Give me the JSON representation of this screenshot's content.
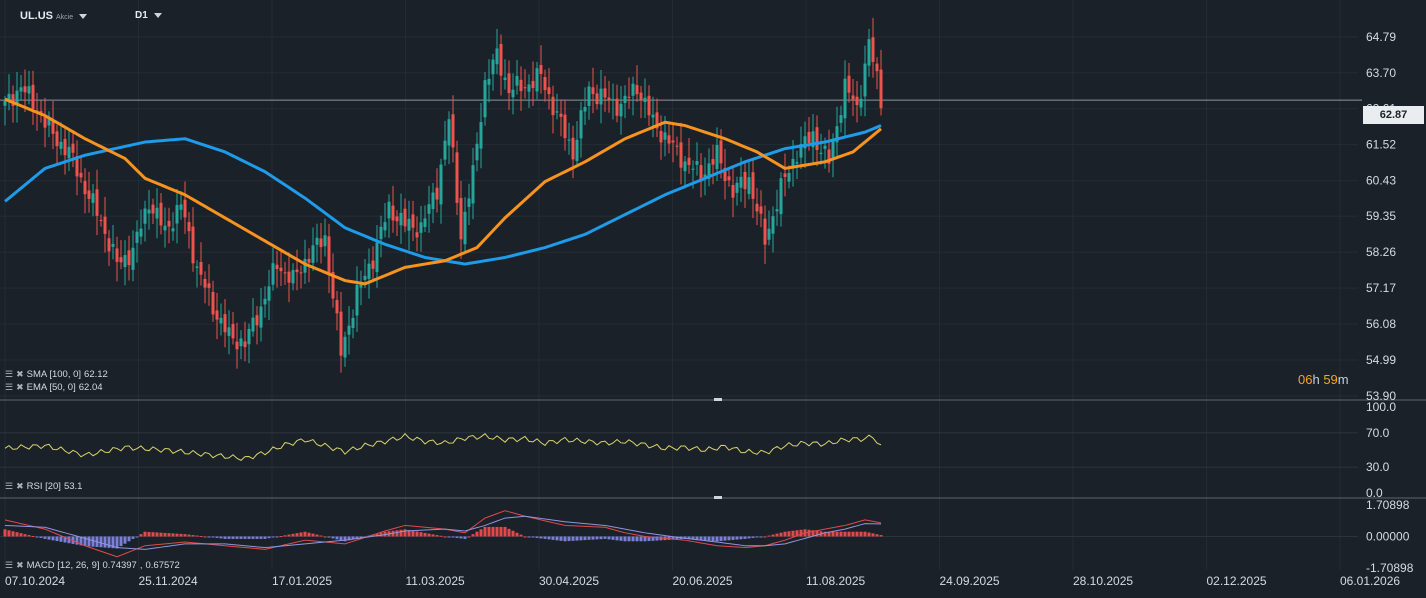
{
  "header": {
    "symbol": "UL.US",
    "type": "Akcie",
    "interval": "D1"
  },
  "indicators": {
    "sma": {
      "label": "SMA [100, 0]",
      "value": "62.12"
    },
    "ema": {
      "label": "EMA [50, 0]",
      "value": "62.04"
    },
    "rsi": {
      "label": "RSI [20]",
      "value": "53.1"
    },
    "macd": {
      "label": "MACD [12, 26, 9]",
      "value1": "0.74397",
      "value2": "0.67572"
    }
  },
  "current_price": "62.87",
  "timer": {
    "hours": "06",
    "h": "h",
    "minutes": "59",
    "m": "m"
  },
  "colors": {
    "up": "#26a69a",
    "down": "#ef5350",
    "sma": "#1e9be9",
    "ema": "#f7931e",
    "rsi": "#d9d36a",
    "bg": "#1a2129"
  },
  "chart_data": {
    "type": "candlestick",
    "price_axis": {
      "ticks": [
        "64.79",
        "63.70",
        "62.61",
        "61.52",
        "60.43",
        "59.35",
        "58.26",
        "57.17",
        "56.08",
        "54.99",
        "53.90"
      ],
      "range": [
        53.9,
        65.3
      ]
    },
    "rsi_axis": {
      "ticks": [
        "100.0",
        "70.0",
        "30.0",
        "0.0"
      ],
      "range": [
        0,
        100
      ]
    },
    "macd_axis": {
      "ticks": [
        "1.70898",
        "0.00000",
        "-1.70898"
      ],
      "range": [
        -1.70898,
        1.70898
      ]
    },
    "x_ticks": [
      "07.10.2024",
      "25.11.2024",
      "17.01.2025",
      "11.03.2025",
      "30.04.2025",
      "20.06.2025",
      "11.08.2025",
      "24.09.2025",
      "28.10.2025",
      "02.12.2025",
      "06.01.2026"
    ],
    "close_anchors": [
      [
        0,
        62.7
      ],
      [
        4,
        63.3
      ],
      [
        8,
        62.6
      ],
      [
        12,
        61.8
      ],
      [
        16,
        61.3
      ],
      [
        20,
        60.2
      ],
      [
        24,
        59.2
      ],
      [
        28,
        57.9
      ],
      [
        32,
        58.3
      ],
      [
        36,
        59.8
      ],
      [
        40,
        58.9
      ],
      [
        44,
        59.7
      ],
      [
        48,
        57.8
      ],
      [
        52,
        56.6
      ],
      [
        56,
        55.7
      ],
      [
        60,
        55.5
      ],
      [
        64,
        56.6
      ],
      [
        68,
        57.9
      ],
      [
        72,
        57.4
      ],
      [
        76,
        58.2
      ],
      [
        80,
        58.7
      ],
      [
        84,
        55.2
      ],
      [
        88,
        57.0
      ],
      [
        92,
        58.1
      ],
      [
        96,
        59.6
      ],
      [
        100,
        59.1
      ],
      [
        104,
        59.0
      ],
      [
        108,
        60.2
      ],
      [
        111,
        62.3
      ],
      [
        114,
        58.8
      ],
      [
        117,
        60.6
      ],
      [
        120,
        63.4
      ],
      [
        123,
        64.2
      ],
      [
        126,
        63.2
      ],
      [
        130,
        63.3
      ],
      [
        134,
        63.6
      ],
      [
        138,
        62.4
      ],
      [
        142,
        61.3
      ],
      [
        146,
        63.2
      ],
      [
        150,
        62.9
      ],
      [
        154,
        62.7
      ],
      [
        158,
        63.3
      ],
      [
        162,
        62.2
      ],
      [
        166,
        61.6
      ],
      [
        170,
        61.0
      ],
      [
        174,
        60.6
      ],
      [
        178,
        61.2
      ],
      [
        182,
        60.1
      ],
      [
        186,
        60.5
      ],
      [
        190,
        58.6
      ],
      [
        194,
        60.2
      ],
      [
        198,
        61.3
      ],
      [
        202,
        61.8
      ],
      [
        206,
        61.0
      ],
      [
        210,
        63.3
      ],
      [
        213,
        62.6
      ],
      [
        216,
        64.6
      ],
      [
        218,
        63.5
      ],
      [
        219,
        62.87
      ]
    ],
    "sma_anchors": [
      [
        0,
        59.8
      ],
      [
        10,
        60.8
      ],
      [
        20,
        61.2
      ],
      [
        35,
        61.6
      ],
      [
        45,
        61.7
      ],
      [
        55,
        61.3
      ],
      [
        65,
        60.7
      ],
      [
        75,
        59.9
      ],
      [
        85,
        59.0
      ],
      [
        95,
        58.5
      ],
      [
        105,
        58.1
      ],
      [
        115,
        57.9
      ],
      [
        125,
        58.1
      ],
      [
        135,
        58.4
      ],
      [
        145,
        58.8
      ],
      [
        155,
        59.4
      ],
      [
        165,
        60.0
      ],
      [
        175,
        60.5
      ],
      [
        185,
        61.0
      ],
      [
        195,
        61.4
      ],
      [
        205,
        61.6
      ],
      [
        215,
        61.9
      ],
      [
        219,
        62.1
      ]
    ],
    "ema_anchors": [
      [
        0,
        62.9
      ],
      [
        10,
        62.4
      ],
      [
        20,
        61.7
      ],
      [
        30,
        61.1
      ],
      [
        35,
        60.5
      ],
      [
        45,
        60.0
      ],
      [
        55,
        59.3
      ],
      [
        65,
        58.6
      ],
      [
        75,
        57.9
      ],
      [
        85,
        57.4
      ],
      [
        90,
        57.3
      ],
      [
        100,
        57.8
      ],
      [
        110,
        58.0
      ],
      [
        118,
        58.4
      ],
      [
        125,
        59.3
      ],
      [
        135,
        60.4
      ],
      [
        145,
        61.0
      ],
      [
        155,
        61.7
      ],
      [
        165,
        62.2
      ],
      [
        170,
        62.1
      ],
      [
        180,
        61.7
      ],
      [
        188,
        61.3
      ],
      [
        195,
        60.8
      ],
      [
        205,
        61.0
      ],
      [
        212,
        61.3
      ],
      [
        219,
        62.0
      ]
    ],
    "rsi_anchors": [
      [
        0,
        52
      ],
      [
        10,
        55
      ],
      [
        20,
        44
      ],
      [
        30,
        53
      ],
      [
        40,
        50
      ],
      [
        50,
        45
      ],
      [
        60,
        40
      ],
      [
        65,
        47
      ],
      [
        70,
        56
      ],
      [
        75,
        62
      ],
      [
        80,
        55
      ],
      [
        85,
        48
      ],
      [
        90,
        55
      ],
      [
        95,
        60
      ],
      [
        100,
        66
      ],
      [
        105,
        60
      ],
      [
        110,
        58
      ],
      [
        115,
        64
      ],
      [
        120,
        66
      ],
      [
        125,
        62
      ],
      [
        130,
        63
      ],
      [
        135,
        58
      ],
      [
        140,
        62
      ],
      [
        145,
        60
      ],
      [
        150,
        58
      ],
      [
        155,
        60
      ],
      [
        160,
        56
      ],
      [
        165,
        52
      ],
      [
        170,
        53
      ],
      [
        175,
        50
      ],
      [
        180,
        54
      ],
      [
        185,
        48
      ],
      [
        190,
        47
      ],
      [
        195,
        55
      ],
      [
        200,
        58
      ],
      [
        205,
        57
      ],
      [
        210,
        62
      ],
      [
        215,
        63
      ],
      [
        217,
        66
      ],
      [
        219,
        53
      ]
    ],
    "macd_anchors": [
      [
        0,
        0.9
      ],
      [
        10,
        0.4
      ],
      [
        20,
        -0.5
      ],
      [
        28,
        -1.1
      ],
      [
        35,
        -0.5
      ],
      [
        45,
        -0.3
      ],
      [
        55,
        -0.5
      ],
      [
        65,
        -0.7
      ],
      [
        75,
        -0.2
      ],
      [
        85,
        -0.4
      ],
      [
        95,
        0.3
      ],
      [
        100,
        0.6
      ],
      [
        110,
        0.4
      ],
      [
        115,
        0.2
      ],
      [
        120,
        1.0
      ],
      [
        125,
        1.4
      ],
      [
        130,
        1.1
      ],
      [
        140,
        0.6
      ],
      [
        150,
        0.5
      ],
      [
        155,
        0.2
      ],
      [
        160,
        0.0
      ],
      [
        170,
        -0.2
      ],
      [
        178,
        -0.5
      ],
      [
        185,
        -0.6
      ],
      [
        190,
        -0.5
      ],
      [
        195,
        -0.2
      ],
      [
        200,
        0.2
      ],
      [
        205,
        0.4
      ],
      [
        210,
        0.6
      ],
      [
        215,
        0.9
      ],
      [
        219,
        0.74
      ]
    ],
    "signal_anchors": [
      [
        0,
        0.6
      ],
      [
        10,
        0.5
      ],
      [
        20,
        -0.1
      ],
      [
        28,
        -0.6
      ],
      [
        35,
        -0.7
      ],
      [
        45,
        -0.4
      ],
      [
        55,
        -0.4
      ],
      [
        65,
        -0.6
      ],
      [
        75,
        -0.4
      ],
      [
        85,
        -0.2
      ],
      [
        95,
        0.1
      ],
      [
        100,
        0.3
      ],
      [
        110,
        0.4
      ],
      [
        115,
        0.3
      ],
      [
        120,
        0.6
      ],
      [
        125,
        1.0
      ],
      [
        130,
        1.1
      ],
      [
        140,
        0.8
      ],
      [
        150,
        0.6
      ],
      [
        155,
        0.4
      ],
      [
        160,
        0.2
      ],
      [
        170,
        -0.1
      ],
      [
        178,
        -0.3
      ],
      [
        185,
        -0.5
      ],
      [
        190,
        -0.5
      ],
      [
        195,
        -0.4
      ],
      [
        200,
        -0.1
      ],
      [
        205,
        0.2
      ],
      [
        210,
        0.4
      ],
      [
        215,
        0.7
      ],
      [
        219,
        0.68
      ]
    ]
  }
}
